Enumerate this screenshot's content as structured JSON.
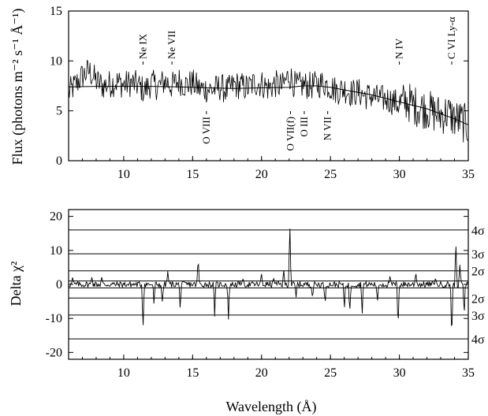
{
  "chart_data": [
    {
      "type": "line",
      "panel": "top",
      "xlabel": "",
      "ylabel": "Flux (photons m⁻² s⁻¹ Å⁻¹)",
      "xlim": [
        6,
        35
      ],
      "ylim": [
        0,
        15
      ],
      "yticks": [
        "0",
        "5",
        "10",
        "15"
      ],
      "xticks": [
        "10",
        "15",
        "20",
        "25",
        "30",
        "35"
      ],
      "grid": false,
      "series": [
        {
          "style": "noisy-histogram",
          "x": [
            6,
            6.5,
            7,
            7.5,
            8,
            8.5,
            9,
            9.5,
            10,
            10.5,
            11,
            11.5,
            12,
            12.5,
            13,
            13.5,
            14,
            14.5,
            15,
            15.5,
            16,
            16.5,
            17,
            17.5,
            18,
            18.5,
            19,
            19.5,
            20,
            20.5,
            21,
            21.5,
            22,
            22.5,
            23,
            23.5,
            24,
            24.5,
            25,
            25.5,
            26,
            26.5,
            27,
            27.5,
            28,
            28.5,
            29,
            29.5,
            30,
            30.5,
            31,
            31.5,
            32,
            32.5,
            33,
            33.5,
            34,
            34.5,
            35
          ],
          "y": [
            6.8,
            7.6,
            8.5,
            9.0,
            8.0,
            7.5,
            7.7,
            7.9,
            7.6,
            7.8,
            7.6,
            7.0,
            7.8,
            7.4,
            8.0,
            7.5,
            8.0,
            7.6,
            7.8,
            7.2,
            7.2,
            7.1,
            7.4,
            7.0,
            7.6,
            7.5,
            7.3,
            7.8,
            7.7,
            7.3,
            7.7,
            7.4,
            8.6,
            7.4,
            7.6,
            7.5,
            7.6,
            7.8,
            7.4,
            7.0,
            7.2,
            6.8,
            6.9,
            6.5,
            6.5,
            6.2,
            6.2,
            6.0,
            5.6,
            6.0,
            5.6,
            5.3,
            5.2,
            4.8,
            4.6,
            4.8,
            4.2,
            4.0,
            3.4
          ]
        },
        {
          "style": "model",
          "x": [
            6,
            8,
            10,
            12,
            14,
            16,
            18,
            20,
            22,
            23,
            24,
            25,
            26,
            28,
            30,
            32,
            34,
            35
          ],
          "y": [
            7.4,
            7.45,
            7.45,
            7.45,
            7.4,
            7.3,
            7.25,
            7.3,
            7.35,
            7.5,
            7.5,
            7.35,
            7.1,
            6.6,
            5.9,
            5.2,
            4.2,
            3.6
          ]
        }
      ],
      "annotations": [
        {
          "text": "Ne IX",
          "x": 11.4,
          "position": "above"
        },
        {
          "text": "Ne VII",
          "x": 13.5,
          "position": "above"
        },
        {
          "text": "N IV",
          "x": 30.0,
          "position": "above"
        },
        {
          "text": "C VI Ly-α",
          "x": 33.8,
          "position": "above"
        },
        {
          "text": "O VIII",
          "x": 16.0,
          "position": "below"
        },
        {
          "text": "O VII(f)",
          "x": 22.1,
          "position": "below"
        },
        {
          "text": "O III",
          "x": 23.1,
          "position": "below"
        },
        {
          "text": "N VII",
          "x": 24.8,
          "position": "below"
        }
      ]
    },
    {
      "type": "line",
      "panel": "bottom",
      "xlabel": "Wavelength (Å)",
      "ylabel": "Delta χ²",
      "xlim": [
        6,
        35
      ],
      "ylim": [
        -22,
        22
      ],
      "yticks": [
        "-20",
        "-10",
        "0",
        "10",
        "20"
      ],
      "xticks": [
        "10",
        "15",
        "20",
        "25",
        "30",
        "35"
      ],
      "grid": false,
      "reference_lines": [
        {
          "y": 16,
          "label": "4σ"
        },
        {
          "y": 9,
          "label": "3σ"
        },
        {
          "y": 4,
          "label": "2σ"
        },
        {
          "y": 1,
          "label": ""
        },
        {
          "y": -1,
          "label": ""
        },
        {
          "y": -4,
          "label": "2σ"
        },
        {
          "y": -9,
          "label": "3σ"
        },
        {
          "y": -16,
          "label": "4σ"
        }
      ],
      "spikes": [
        {
          "x": 6.3,
          "y": 2
        },
        {
          "x": 7.7,
          "y": 3
        },
        {
          "x": 8.4,
          "y": 2
        },
        {
          "x": 11.4,
          "y": -13
        },
        {
          "x": 12.2,
          "y": -6
        },
        {
          "x": 12.8,
          "y": -6
        },
        {
          "x": 13.2,
          "y": 4
        },
        {
          "x": 14.1,
          "y": -7
        },
        {
          "x": 15.4,
          "y": 8
        },
        {
          "x": 16.6,
          "y": -9
        },
        {
          "x": 17.6,
          "y": -10
        },
        {
          "x": 18.6,
          "y": 2
        },
        {
          "x": 20.0,
          "y": 3
        },
        {
          "x": 20.9,
          "y": 2
        },
        {
          "x": 21.6,
          "y": 4
        },
        {
          "x": 22.05,
          "y": 19
        },
        {
          "x": 22.5,
          "y": -4
        },
        {
          "x": 23.7,
          "y": -4
        },
        {
          "x": 24.6,
          "y": -6
        },
        {
          "x": 26.0,
          "y": -8
        },
        {
          "x": 26.4,
          "y": -9
        },
        {
          "x": 27.3,
          "y": -8
        },
        {
          "x": 28.4,
          "y": -6
        },
        {
          "x": 29.3,
          "y": 2
        },
        {
          "x": 29.9,
          "y": -13
        },
        {
          "x": 31.2,
          "y": 4
        },
        {
          "x": 32.6,
          "y": 2
        },
        {
          "x": 33.8,
          "y": -17
        },
        {
          "x": 34.1,
          "y": 12
        },
        {
          "x": 34.4,
          "y": 6
        },
        {
          "x": 34.7,
          "y": -10
        }
      ]
    }
  ]
}
